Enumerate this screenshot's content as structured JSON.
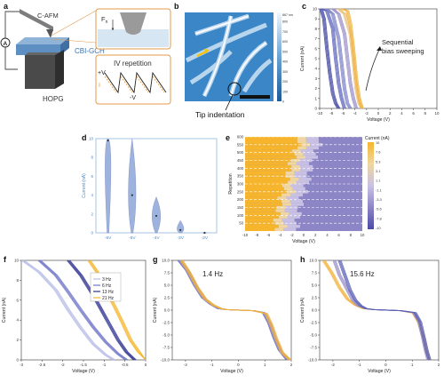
{
  "panels": {
    "a": {
      "letter": "a",
      "labels": {
        "cafm": "C-AFM",
        "sample": "CBI-GCH",
        "substrate": "HOPG",
        "ammeter": "A",
        "force": "F",
        "force_sub": "n",
        "iv_title": "IV repetition",
        "plus_v": "+V",
        "minus_v": "-V",
        "i_label": "I"
      }
    },
    "b": {
      "letter": "b",
      "colorbar_top": "867 nm",
      "colorbar_ticks": [
        "800",
        "700",
        "600",
        "500",
        "400",
        "300",
        "200",
        "100",
        "0"
      ],
      "annotation": "Tip indentation"
    },
    "c": {
      "letter": "c",
      "annotation_line1": "Sequential",
      "annotation_line2": "bias sweeping"
    },
    "d": {
      "letter": "d"
    },
    "e": {
      "letter": "e",
      "colorbar_title": "Current (nA)",
      "colorbar_ticks": [
        "10",
        "7.6",
        "5.3",
        "3.1",
        "1.1",
        "-1.1",
        "-3.3",
        "-5.6",
        "-7.8",
        "-10"
      ]
    },
    "f": {
      "letter": "f"
    },
    "g": {
      "letter": "g",
      "annotation": "1.4 Hz"
    },
    "h": {
      "letter": "h",
      "annotation": "15.6 Hz"
    }
  },
  "chart_data": [
    {
      "panel": "c",
      "type": "line",
      "xlabel": "Voltage (V)",
      "ylabel": "Current (nA)",
      "xlim": [
        -10,
        10
      ],
      "ylim": [
        0,
        10
      ],
      "x_ticks": [
        -10,
        -8,
        -6,
        -4,
        -2,
        0,
        2,
        4,
        6,
        8,
        10
      ],
      "y_ticks": [
        0,
        1,
        2,
        3,
        4,
        5,
        6,
        7,
        8,
        9,
        10
      ],
      "series": [
        {
          "color": "#3a3f9e",
          "x": [
            -10,
            -9.5,
            -9,
            -8.5,
            -8,
            -7.5,
            -7
          ],
          "y": [
            10,
            9,
            6,
            3.5,
            1.5,
            0.5,
            0
          ]
        },
        {
          "color": "#5b62b8",
          "x": [
            -10,
            -9,
            -8,
            -7.5,
            -7,
            -6.5,
            -6
          ],
          "y": [
            10,
            9.8,
            8,
            5,
            2.5,
            1,
            0
          ]
        },
        {
          "color": "#7a80c8",
          "x": [
            -9,
            -8,
            -7,
            -6.5,
            -6,
            -5.5,
            -5
          ],
          "y": [
            10,
            9.5,
            7,
            4.5,
            2,
            0.5,
            0
          ]
        },
        {
          "color": "#9a8ec9",
          "x": [
            -8,
            -7,
            -6,
            -5.5,
            -5,
            -4.5,
            -4
          ],
          "y": [
            10,
            9.5,
            7.5,
            5,
            2.5,
            1,
            0
          ]
        },
        {
          "color": "#e6c27a",
          "x": [
            -7,
            -6,
            -5,
            -4.5,
            -4,
            -3.5,
            -3
          ],
          "y": [
            10,
            9.5,
            7.5,
            5,
            2,
            0.5,
            0
          ]
        },
        {
          "color": "#f2b23c",
          "x": [
            -6.5,
            -5.5,
            -5,
            -4.5,
            -4,
            -3.5,
            -3
          ],
          "y": [
            10,
            9.8,
            8.5,
            6,
            3,
            1,
            0
          ]
        }
      ]
    },
    {
      "panel": "d",
      "type": "violin",
      "ylabel": "Current (nA)",
      "categories": [
        "-6V",
        "-5V",
        "-4V",
        "-3V",
        "-2V"
      ],
      "ylim": [
        0,
        10
      ],
      "y_ticks": [
        0,
        2,
        4,
        6,
        8,
        10
      ],
      "medians": [
        9.8,
        4.0,
        1.8,
        0.3,
        0.0
      ]
    },
    {
      "panel": "e",
      "type": "heatmap",
      "xlabel": "Voltage (V)",
      "ylabel": "Repetition",
      "xlim": [
        -10,
        10
      ],
      "ylim": [
        0,
        600
      ],
      "x_ticks": [
        -10,
        -8,
        -6,
        -4,
        -2,
        0,
        2,
        4,
        6,
        8,
        10
      ],
      "y_ticks": [
        50,
        100,
        150,
        200,
        250,
        300,
        350,
        400,
        450,
        500,
        550,
        600
      ],
      "colormap": [
        "#4b4aa8",
        "#8c86c6",
        "#c9c1e3",
        "#f0d6a0",
        "#f7b52c"
      ],
      "switch_voltage_by_rep": [
        [
          0,
          -5
        ],
        [
          100,
          -4.5
        ],
        [
          200,
          -4
        ],
        [
          300,
          -3
        ],
        [
          400,
          -2.5
        ],
        [
          500,
          -1.5
        ],
        [
          600,
          -0.5
        ]
      ]
    },
    {
      "panel": "f",
      "type": "line",
      "xlabel": "Voltage (V)",
      "ylabel": "Current (nA)",
      "xlim": [
        -3.0,
        0
      ],
      "ylim": [
        0,
        10
      ],
      "x_ticks": [
        -3.0,
        -2.5,
        -2.0,
        -1.5,
        -1.0,
        -0.5,
        0
      ],
      "y_ticks": [
        0,
        2,
        4,
        6,
        8,
        10
      ],
      "series": [
        {
          "name": "3 Hz",
          "color": "#b8bde8",
          "x": [
            -3.0,
            -2.6,
            -2.2,
            -1.9,
            -1.6,
            -1.3,
            -1.0,
            -0.8
          ],
          "y": [
            10,
            8.8,
            7,
            5,
            3.2,
            1.6,
            0.5,
            0
          ]
        },
        {
          "name": "6 Hz",
          "color": "#6f76c8",
          "x": [
            -2.6,
            -2.2,
            -1.9,
            -1.6,
            -1.3,
            -1.0,
            -0.7,
            -0.5
          ],
          "y": [
            10,
            8.5,
            6.8,
            5,
            3.3,
            1.8,
            0.6,
            0
          ]
        },
        {
          "name": "13 Hz",
          "color": "#2b2f8f",
          "x": [
            -1.9,
            -1.6,
            -1.3,
            -1.1,
            -0.9,
            -0.7,
            -0.5,
            -0.3
          ],
          "y": [
            10,
            8.5,
            6.5,
            5,
            3.5,
            2,
            0.8,
            0
          ]
        },
        {
          "name": "21 Hz",
          "color": "#f5b323",
          "x": [
            -1.4,
            -1.2,
            -1.0,
            -0.8,
            -0.6,
            -0.4,
            -0.2,
            0
          ],
          "y": [
            10,
            8.8,
            7,
            5.5,
            3.8,
            2,
            0.8,
            0
          ]
        }
      ]
    },
    {
      "panel": "g",
      "type": "line",
      "xlabel": "Voltage (V)",
      "ylabel": "Current (nA)",
      "xlim": [
        -2.5,
        2
      ],
      "ylim": [
        -10,
        10
      ],
      "x_ticks": [
        -2,
        -1,
        0,
        1,
        2
      ],
      "y_ticks": [
        -10.0,
        -7.5,
        -5.0,
        -2.5,
        0.0,
        2.5,
        5.0,
        7.5,
        10.0
      ],
      "series": [
        {
          "color": "#5b62b8",
          "x": [
            -2.3,
            -2.0,
            -1.7,
            -1.4,
            -1.1,
            -0.8,
            -0.5,
            0,
            0.5,
            0.9,
            1.1,
            1.3,
            1.5,
            1.8
          ],
          "y": [
            10,
            8,
            5,
            2.5,
            1.2,
            0.3,
            0.1,
            0,
            -0.1,
            -0.5,
            -2.5,
            -5.5,
            -8,
            -10
          ]
        },
        {
          "color": "#9a8ec9",
          "x": [
            -2.25,
            -1.95,
            -1.65,
            -1.35,
            -1.05,
            -0.75,
            -0.5,
            0,
            0.5,
            0.95,
            1.15,
            1.35,
            1.55,
            1.85
          ],
          "y": [
            10,
            7.8,
            4.8,
            2.4,
            1.1,
            0.3,
            0.1,
            0,
            -0.1,
            -0.6,
            -2.8,
            -5.8,
            -8.3,
            -10
          ]
        },
        {
          "color": "#f2b23c",
          "x": [
            -2.2,
            -1.9,
            -1.6,
            -1.3,
            -1.0,
            -0.7,
            -0.5,
            0,
            0.5,
            1.0,
            1.2,
            1.4,
            1.6,
            1.9
          ],
          "y": [
            10,
            7.5,
            4.5,
            2.2,
            1,
            0.3,
            0.1,
            0,
            -0.1,
            -0.7,
            -3,
            -6,
            -8.5,
            -10
          ]
        }
      ]
    },
    {
      "panel": "h",
      "type": "line",
      "xlabel": "Voltage (V)",
      "ylabel": "Current (nA)",
      "xlim": [
        -2.5,
        2
      ],
      "ylim": [
        -10,
        10
      ],
      "x_ticks": [
        -2,
        -1,
        0,
        1,
        2
      ],
      "y_ticks": [
        -10.0,
        -7.5,
        -5.0,
        -2.5,
        0.0,
        2.5,
        5.0,
        7.5,
        10.0
      ],
      "series": [
        {
          "color": "#f2b23c",
          "x": [
            -2.4,
            -2.1,
            -1.8,
            -1.5,
            -1.2,
            -0.9,
            -0.5,
            0,
            0.5,
            1.0,
            1.2,
            1.4,
            1.5,
            1.6
          ],
          "y": [
            10,
            7.5,
            4.5,
            2.2,
            1,
            0.3,
            0.1,
            0,
            -0.1,
            -0.6,
            -2.5,
            -6,
            -8.5,
            -10
          ]
        },
        {
          "color": "#9a8ec9",
          "x": [
            -2.0,
            -1.8,
            -1.5,
            -1.3,
            -1.1,
            -0.8,
            -0.5,
            0,
            0.5,
            1.0,
            1.2,
            1.35,
            1.45,
            1.55
          ],
          "y": [
            10,
            7,
            4,
            2,
            0.9,
            0.3,
            0.1,
            0,
            -0.1,
            -0.5,
            -2.2,
            -5.5,
            -8,
            -10
          ]
        },
        {
          "color": "#5b62b8",
          "x": [
            -1.8,
            -1.6,
            -1.4,
            -1.2,
            -1.0,
            -0.8,
            -0.5,
            0,
            0.5,
            1.05,
            1.25,
            1.4,
            1.5,
            1.6
          ],
          "y": [
            10,
            7,
            4,
            2,
            0.9,
            0.3,
            0.1,
            0,
            -0.1,
            -0.5,
            -2.4,
            -5.8,
            -8.2,
            -10
          ]
        }
      ]
    }
  ]
}
